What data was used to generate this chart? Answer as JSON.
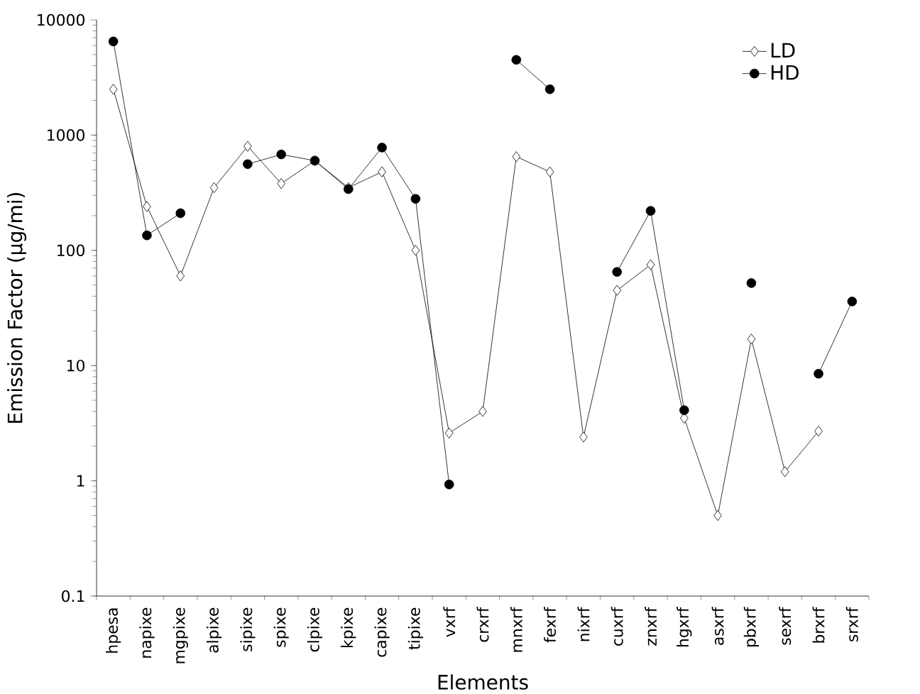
{
  "chart_data": {
    "type": "line",
    "xlabel": "Elements",
    "ylabel": "Emission Factor (µg/mi)",
    "categories": [
      "hpesa",
      "napixe",
      "mgpixe",
      "alpixe",
      "sipixe",
      "spixe",
      "clpixe",
      "kpixe",
      "capixe",
      "tipixe",
      "vxrf",
      "crxrf",
      "mnxrf",
      "fexrf",
      "nixrf",
      "cuxrf",
      "znxrf",
      "hgxrf",
      "asxrf",
      "pbxrf",
      "sexrf",
      "brxrf",
      "srxrf"
    ],
    "series": [
      {
        "name": "LD",
        "color": "#000000",
        "marker": "diamond",
        "values": [
          2500,
          240,
          60,
          350,
          800,
          380,
          600,
          350,
          480,
          100,
          2.6,
          4,
          650,
          480,
          2.4,
          45,
          75,
          3.5,
          0.5,
          17,
          1.2,
          2.7,
          null
        ]
      },
      {
        "name": "HD",
        "color": "#000000",
        "marker": "circle",
        "values": [
          6500,
          135,
          210,
          null,
          560,
          680,
          600,
          340,
          780,
          280,
          0.93,
          null,
          4500,
          2500,
          null,
          65,
          220,
          4.1,
          null,
          52,
          null,
          8.5,
          36
        ]
      }
    ],
    "log": "y",
    "ylim": [
      0.1,
      10000
    ],
    "yticks": [
      0.1,
      1,
      10,
      100,
      1000,
      10000
    ],
    "legend": "top right",
    "grid": false
  }
}
